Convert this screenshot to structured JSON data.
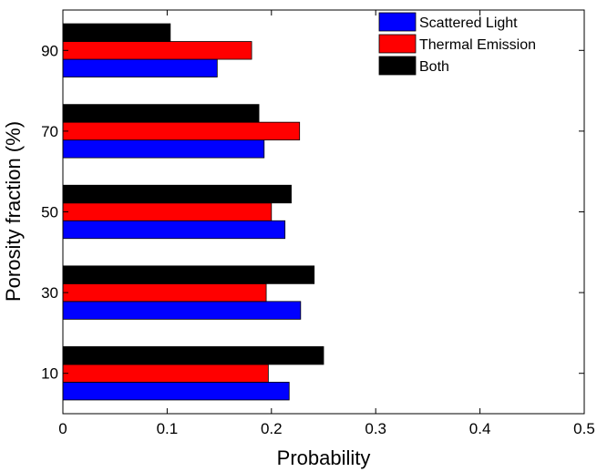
{
  "chart_data": {
    "type": "bar",
    "orientation": "horizontal",
    "title": "",
    "xlabel": "Probability",
    "ylabel": "Porosity fraction (%)",
    "xlim": [
      0,
      0.5
    ],
    "xticks": [
      "0",
      "0.1",
      "0.2",
      "0.3",
      "0.4",
      "0.5"
    ],
    "categories": [
      "10",
      "30",
      "50",
      "70",
      "90"
    ],
    "series": [
      {
        "name": "Scattered Light",
        "color": "#0000ff",
        "values": [
          0.217,
          0.228,
          0.213,
          0.193,
          0.148
        ]
      },
      {
        "name": "Thermal Emission",
        "color": "#ff0000",
        "values": [
          0.197,
          0.195,
          0.2,
          0.227,
          0.181
        ]
      },
      {
        "name": "Both",
        "color": "#000000",
        "values": [
          0.25,
          0.241,
          0.219,
          0.188,
          0.103
        ]
      }
    ],
    "legend_position": "top-right",
    "grid": false
  }
}
